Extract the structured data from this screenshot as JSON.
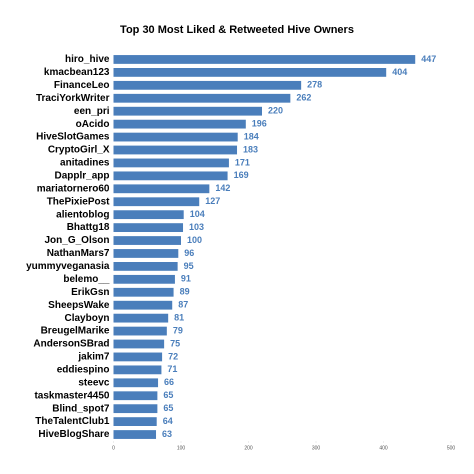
{
  "chart_data": {
    "type": "barh",
    "title": "Top 30 Most Liked & Retweeted Hive Owners",
    "categories": [
      "hiro_hive",
      "kmacbean123",
      "FinanceLeo",
      "TraciYorkWriter",
      "een_pri",
      "oAcido",
      "HiveSlotGames",
      "CryptoGirl_X",
      "anitadines",
      "Dapplr_app",
      "mariatornero60",
      "ThePixiePost",
      "alientoblog",
      "Bhattg18",
      "Jon_G_Olson",
      "NathanMars7",
      "yummyveganasia",
      "belemo__",
      "ErikGsn",
      "SheepsWake",
      "Clayboyn",
      "BreugelMarike",
      "AndersonSBrad",
      "jakim7",
      "eddiespino",
      "steevc",
      "taskmaster4450",
      "Blind_spot7",
      "TheTalentClub1",
      "HiveBlogShare"
    ],
    "values": [
      447,
      404,
      278,
      262,
      220,
      196,
      184,
      183,
      171,
      169,
      142,
      127,
      104,
      103,
      100,
      96,
      95,
      91,
      89,
      87,
      81,
      79,
      75,
      72,
      71,
      66,
      65,
      65,
      64,
      63
    ],
    "color": "#4a7ebb",
    "xlim": [
      0,
      500
    ],
    "xticks": [
      0,
      100,
      200,
      300,
      400,
      500
    ]
  }
}
